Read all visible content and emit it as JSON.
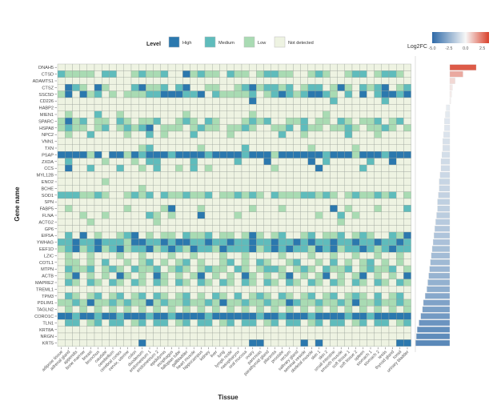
{
  "chart_data": {
    "type": "heatmap",
    "xlabel": "Tissue",
    "ylabel": "Gene name",
    "legend": {
      "title": "Level",
      "placement": "top",
      "entries": [
        {
          "code": "H",
          "label": "High",
          "color": "#2b78ae"
        },
        {
          "code": "M",
          "label": "Medium",
          "color": "#5fbcbc"
        },
        {
          "code": "L",
          "label": "Low",
          "color": "#a9dbb3"
        },
        {
          "code": "N",
          "label": "Not detected",
          "color": "#eef3e2"
        }
      ]
    },
    "genes": [
      "DNAH5",
      "CTSD",
      "ADAMTS1",
      "CTSZ",
      "SSC5D",
      "CD226",
      "HABP2",
      "MIEN1",
      "SPARC",
      "HSPA8",
      "NPC2",
      "VNN1",
      "TXN",
      "PSAP",
      "ZXDA",
      "CCS",
      "MYL12B",
      "ENO2",
      "BCHE",
      "SOD1",
      "SPN",
      "FABP5",
      "FLNA",
      "ACTG2",
      "GP6",
      "EIF5A",
      "YWHAG",
      "EEF1D",
      "LZIC",
      "COTL1",
      "MTPN",
      "ACTB",
      "MAPRE2",
      "TREML1",
      "TPM3",
      "PDLIM1",
      "TAGLN2",
      "CORO1C",
      "TLN1",
      "KRT8A",
      "NRGN",
      "KRT5"
    ],
    "tissues": [
      "adipose tissue",
      "adrenal gland",
      "appendix",
      "bone marrow",
      "breast",
      "bronchus",
      "caudate",
      "cerebellum",
      "cerebral cortex",
      "cervix, uterine",
      "colon",
      "duodenum",
      "endometrium 1",
      "endometrium 2",
      "epididymis",
      "esophagus",
      "fallopian tube",
      "gallbladder",
      "heart muscle",
      "hippocampus",
      "kidney",
      "liver",
      "lung",
      "lymph node",
      "nasopharynx",
      "oral mucosa",
      "ovary",
      "pancreas",
      "parathyroid gland",
      "placenta",
      "prostate",
      "rectum",
      "salivary gland",
      "seminal vesicle",
      "skeletal muscle",
      "skin 1",
      "skin 2",
      "small intestine",
      "smooth muscle",
      "soft tissue 1",
      "soft tissue 2",
      "spleen",
      "stomach 1",
      "stomach 2",
      "testis",
      "thyroid gland",
      "tonsil",
      "urinary bladder"
    ],
    "levels": [
      "NNNNNNNN NNNNNNNN NNNNNNNN NNNNNNNN NNNNNNNN NNNNNNNN",
      "MLLLLNMM NNLMLLMN NHLMLLNM LLNLMMLL NNLMLNNL MMNLMMLN",
      "NNNNNNNN NNNNNNNN NNNNNNNN NNNNNNNN NNNNNNNN NNNNNNNN",
      "NHMLNHLN NNMHLLMN MHNNLLNN LMHLMMLM NLMMNLHL NMLMHNLM",
      "LHNHLMNL NLLLMMHH HMMHNMLL LLMNLMHM LMHHMLNM NHNMHHMH",
      "NNNNNNNN NNNNNNNN NNNNNNNN NNHNNNNN NNNNNMNN NNNNMNNN",
      "NNNNNNNN NNNNNNNN NNNNNNNN NNNNNNNN NNNNNNNN NNNNNNNN",
      "NLNNNMNN LNNNNNNN NLNNNNNN NNLNNNNN NNNNLNNN NNNNNNNN",
      "LHLMNLLN MLNLLMNN LMLNMLNN NLMLMNNL LMNLLNML NLLMNLMN",
      "LMLLNLMN LMLMHNLL LNLMLLNL LMLNNLLM NMLLNLLM LNLLMLNL",
      "NLNNMNNN NLNNMNLN NNMNNNNL NNNNNNMN NLNNNNNM NNNLNNNN",
      "NNNNNNNN NNNNNNNN NNNNNNNN NNNNNNNN NNNNNNNN NNNNNNNN",
      "NNNNNNNN NNNLMNNN NNNLNNNN NMNNNNNN NNLNNNNN LNNNNNNN",
      "HHHHLHNH HLHMHHHM HHHHMHHH HMHHHLHH HHHHMHHH LHHHMHHH",
      "NMNNNNLN NNLNMMNN NNMNNNNN MNNNHNNN NNHNMNNN NNMNNHNN",
      "NHNNMNNN MNNLNMNN LNMNLNNN NNNNNLNN NNNHNNNN NMNNNNNN",
      "NNNNNNNN NNNNNNNN NNNNNNNN NNNNNNNN NNNNNNNN NNNNNNNN",
      "NNNNNNLN NNNNNNNN NNNNNNNN NNNNNNNN NNNNNNNN NNNNNNNN",
      "NNNNNNNN NNNLNNNN NNNNNNNN NNNNNNNN NNNNNNNN NNNNNNNN",
      "MMMLLMLN NLMLMNML LMLLMNLL MLMLNMLL LMMLMLNL MLLMLMNL",
      "NNNNNNNN NNNNNNNN NNNNNNNN NNNNNNNN NNNNNNNN NNNNNNNN",
      "NLNNNNNN NLNNNNLH NNNLNNNN NNLNNNLN NNNNNHNL NNNLNNNM",
      "NNNLNNLN NNNNMLNL NNNHNNNN LNNNNNNN NNNLNNMN LNNNNNNN",
      "NNNNLNNN NNNNNLNN NNNNNNNN NNNNNNNN NNNNNNLN NNNNNNNN",
      "NNNNNNNN NNNNNNNN NNNNNNNN NNNNNNNN NNNNNNNN NNNNNNNN",
      "NMNHNLNN LMHNLNLL NMLLMNLL NLHLNLMN NLMNLLMN LMLNNMLH",
      "MMHMMHMM MLHHMMHM HHMMHMMH MMHMMHMM HMHMMHMM HMMHMMHM",
      "LMHLMHLM HLMMHLMH MLHMMLHM MMHLMHMH MMLHMHLM MHMLMHMM",
      "NLNNLNNN LNNLNNNL NNLNNNLN NLNNNNLN NNLNNLNN LNNLNNLN",
      "NLLNLNMN NLNLMNLN LMNLNNLM NLNMLNNL MNNLNMNL NLMNLNLN",
      "NMLLMNLM LNMLLMNL MLNLMLLN MLNLMMLN LMLNMLLM NLMLLMNL",
      "NLHNLNLN HLNLNHLN LNLHNLNL NHLNLNLH NLNLHNLN LHNLNLNH",
      "NMLNMLNM LNMLNMLN MLNMLNML NMLNMLNM LNMLNMLN MLNMLNML",
      "NNNNNNNN NNNNNNNN NNNNNNNN NNNNNNNN NNNNNNNN NNNNNNNN",
      "NMLNLMNL MNLMNMLN LMNLNMLN MNLMLNML NLMNLMNL MLNMNLMN",
      "LLMLHLLM LMLLHLML LMLLMLHL LMLLMLLH MLLMLLML HLLMLLML",
      "NLNLNLNL NLNLNLNL NLNLNLNL NLNLNLNL NLNLNLNL NLNLNLNL",
      "HHMHHMHH MHHHMHHM HHHHMHHH HHHMHHMH HHMHHHHM HHMHHHHH",
      "NMMNLMNM MNLMNMMN LMNMMNLM NMMNLMNM MNLMNMMN LMNMMNLM",
      "NNNNNNNN NNNNNNNN NNNNNNNN NNNNNNNN NNNNNNNN NNNNNNNN",
      "NNNNNNNN NNNNNNNN NNNNNNNN NNNNNNNN NNNNNNNN NNNNNNNN",
      "NNNNNNNN NNNHNNNN NNNNNNNN NNHHNNNN NHNHNNNN NNNNNNHH"
    ],
    "log2fc": {
      "title": "Log2FC",
      "ticks": [
        "-5.0",
        "-2.5",
        "0.0",
        "2.5"
      ],
      "range": [
        -5.0,
        3.5
      ],
      "low_color": "#2f6aa8",
      "mid_color": "#f7f7f7",
      "high_color": "#d9412b",
      "values": [
        3.0,
        1.5,
        0.6,
        0.3,
        0.2,
        0.1,
        -0.4,
        -0.5,
        -0.6,
        -0.6,
        -0.7,
        -0.8,
        -0.8,
        -0.9,
        -1.0,
        -1.0,
        -1.1,
        -1.2,
        -1.2,
        -1.3,
        -1.4,
        -1.4,
        -1.5,
        -1.6,
        -1.7,
        -1.8,
        -1.9,
        -2.0,
        -2.1,
        -2.2,
        -2.3,
        -2.4,
        -2.5,
        -2.6,
        -2.8,
        -3.0,
        -3.1,
        -3.3,
        -3.5,
        -3.7,
        -3.8,
        -3.9
      ]
    }
  }
}
